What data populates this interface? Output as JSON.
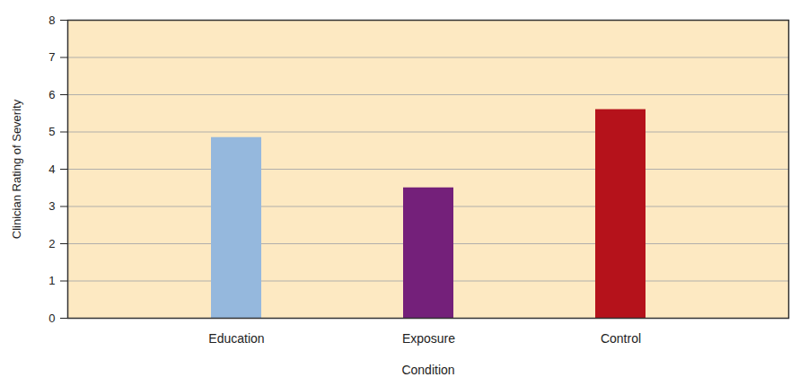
{
  "chart_data": {
    "type": "bar",
    "x_label": "Condition",
    "y_label": "Clinician Rating of Severity",
    "categories": [
      "Education",
      "Exposure",
      "Control"
    ],
    "values": [
      4.85,
      3.5,
      5.6
    ],
    "colors": [
      "#95b8dd",
      "#74207a",
      "#b5121b"
    ],
    "ylim": [
      0,
      8
    ],
    "yticks": [
      0,
      1,
      2,
      3,
      4,
      5,
      6,
      7,
      8
    ],
    "grid": true
  }
}
